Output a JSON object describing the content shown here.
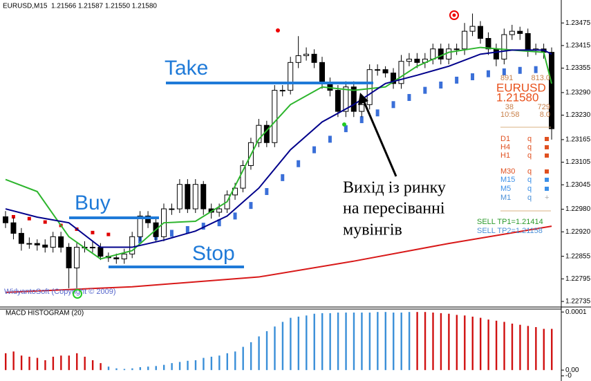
{
  "chart_data": [
    {
      "type": "candlestick",
      "title": "EURUSD,M15  1.21566 1.21587 1.21550 1.21580",
      "ylim": [
        1.22722,
        1.23536
      ],
      "yticks": [
        1.23475,
        1.23415,
        1.23355,
        {
          "value": 1.2329,
          "label": "1.23290"
        },
        {
          "value": 1.2323,
          "label": "1.23230"
        },
        1.23165,
        1.23105,
        1.23045,
        {
          "value": 1.2298,
          "label": "1.22980"
        },
        {
          "value": 1.2292,
          "label": "1.22920"
        },
        1.22855,
        1.22795,
        1.22735
      ],
      "bull_color": "#ffffff",
      "bear_color": "#000000",
      "open": [
        1.2296,
        1.22944,
        1.22916,
        1.22889,
        1.22889,
        1.22885,
        1.22879,
        1.22907,
        1.22879,
        1.22824,
        1.22879,
        1.22879,
        1.22879,
        1.22855,
        1.22851,
        1.22848,
        1.22861,
        1.22907,
        1.22962,
        1.22944,
        1.22907,
        1.22981,
        1.22981,
        1.23046,
        1.22981,
        1.23046,
        1.22981,
        1.22972,
        1.22981,
        1.23018,
        1.23036,
        1.23096,
        1.23157,
        1.23203,
        1.23157,
        1.23296,
        1.23296,
        1.2337,
        1.23388,
        1.23392,
        1.2337,
        1.23314,
        1.23296,
        1.2324,
        1.23305,
        1.2324,
        1.23258,
        1.23351,
        1.23351,
        1.23342,
        1.23314,
        1.23373,
        1.23379,
        1.2337,
        1.23379,
        1.23406,
        1.23379,
        1.23406,
        1.23406,
        1.23453,
        1.23466,
        1.23434,
        1.23406,
        1.23379,
        1.23444,
        1.23453,
        1.23447,
        1.23403,
        1.23406,
        1.23397
      ],
      "high": [
        1.22975,
        1.22958,
        1.2293,
        1.22905,
        1.229,
        1.229,
        1.2292,
        1.2292,
        1.2289,
        1.2289,
        1.22895,
        1.22895,
        1.2289,
        1.22865,
        1.22862,
        1.22875,
        1.2292,
        1.22975,
        1.22975,
        1.22955,
        1.22995,
        1.22995,
        1.2306,
        1.2306,
        1.2306,
        1.23055,
        1.22995,
        1.22995,
        1.2303,
        1.2305,
        1.2311,
        1.2317,
        1.2322,
        1.23215,
        1.2331,
        1.2331,
        1.23385,
        1.2344,
        1.2341,
        1.23405,
        1.23385,
        1.2333,
        1.2331,
        1.2332,
        1.2332,
        1.23275,
        1.23365,
        1.23365,
        1.2336,
        1.23355,
        1.2339,
        1.23395,
        1.23395,
        1.23395,
        1.2342,
        1.2342,
        1.2342,
        1.2342,
        1.23475,
        1.235,
        1.2348,
        1.2345,
        1.2342,
        1.2346,
        1.2347,
        1.23465,
        1.2346,
        1.2342,
        1.2342,
        1.2341
      ],
      "low": [
        1.2293,
        1.229,
        1.2287,
        1.22875,
        1.2287,
        1.22865,
        1.22865,
        1.22865,
        1.2277,
        1.2277,
        1.22865,
        1.22865,
        1.22845,
        1.2284,
        1.22835,
        1.22835,
        1.2285,
        1.22895,
        1.2293,
        1.22895,
        1.22895,
        1.22965,
        1.2297,
        1.2297,
        1.2297,
        1.22965,
        1.22955,
        1.2296,
        1.2297,
        1.23005,
        1.23025,
        1.23085,
        1.23145,
        1.23145,
        1.23145,
        1.2328,
        1.23285,
        1.23355,
        1.23375,
        1.23355,
        1.233,
        1.2328,
        1.23225,
        1.23225,
        1.23225,
        1.23225,
        1.23245,
        1.23335,
        1.2333,
        1.233,
        1.233,
        1.2336,
        1.23355,
        1.23355,
        1.23365,
        1.23365,
        1.23365,
        1.2339,
        1.2339,
        1.2344,
        1.2342,
        1.2339,
        1.2336,
        1.23365,
        1.2343,
        1.2343,
        1.23385,
        1.2339,
        1.2338,
        1.23165
      ],
      "close": [
        1.22944,
        1.22916,
        1.22889,
        1.22889,
        1.22885,
        1.22879,
        1.22907,
        1.22879,
        1.22824,
        1.22879,
        1.22879,
        1.22879,
        1.22855,
        1.22851,
        1.22848,
        1.22861,
        1.22907,
        1.22962,
        1.22944,
        1.22907,
        1.22981,
        1.22981,
        1.23046,
        1.22981,
        1.23046,
        1.22981,
        1.22972,
        1.22981,
        1.23018,
        1.23036,
        1.23096,
        1.23157,
        1.23203,
        1.23157,
        1.23296,
        1.23296,
        1.2337,
        1.23388,
        1.23392,
        1.2337,
        1.23314,
        1.23296,
        1.2324,
        1.23305,
        1.2324,
        1.23258,
        1.23351,
        1.23351,
        1.23342,
        1.23314,
        1.23373,
        1.23379,
        1.2337,
        1.23379,
        1.23406,
        1.23379,
        1.23406,
        1.23406,
        1.23453,
        1.23466,
        1.23434,
        1.23406,
        1.23379,
        1.23444,
        1.23453,
        1.23447,
        1.23403,
        1.23406,
        1.23397,
        1.23194
      ],
      "series": [
        {
          "style": "line",
          "color": "#d81818",
          "x": [
            0,
            16,
            32,
            44,
            56,
            69
          ],
          "values": [
            1.22759,
            1.22774,
            1.228,
            1.22842,
            1.22889,
            1.22935
          ]
        },
        {
          "style": "dots",
          "color": "#e00000",
          "x": [
            1,
            3,
            5,
            7,
            9,
            11,
            13
          ],
          "values": [
            1.2296,
            1.22955,
            1.22946,
            1.22937,
            1.22927,
            1.22918,
            1.22913
          ]
        },
        {
          "style": "dots",
          "color": "#3a6fd8",
          "x": [
            17,
            19,
            21,
            23,
            25,
            27,
            29,
            31,
            33,
            35,
            37,
            39,
            41,
            43,
            45,
            47,
            49,
            51,
            53,
            55,
            57,
            59,
            61,
            63,
            65,
            67,
            69
          ],
          "values": [
            1.22898,
            1.22907,
            1.22916,
            1.22926,
            1.22935,
            1.22944,
            1.22962,
            1.2299,
            1.23027,
            1.23064,
            1.23101,
            1.23138,
            1.23166,
            1.23194,
            1.23218,
            1.23236,
            1.23258,
            1.23277,
            1.23296,
            1.2331,
            1.23323,
            1.23332,
            1.2334,
            1.23345,
            1.23349,
            1.23351,
            1.23351
          ]
        },
        {
          "style": "line",
          "color": "#2db52d",
          "x": [
            0,
            4,
            8,
            12,
            16,
            20,
            24,
            28,
            32,
            36,
            40,
            44,
            48,
            52,
            56,
            60,
            64,
            68,
            69
          ],
          "values": [
            1.23059,
            1.23027,
            1.22907,
            1.22848,
            1.2287,
            1.22944,
            1.22948,
            1.23,
            1.23166,
            1.23258,
            1.23305,
            1.23296,
            1.23305,
            1.2336,
            1.23397,
            1.2341,
            1.23403,
            1.23397,
            1.23314
          ]
        },
        {
          "style": "line",
          "color": "#00008b",
          "x": [
            0,
            4,
            8,
            12,
            16,
            20,
            24,
            28,
            32,
            36,
            40,
            44,
            48,
            52,
            56,
            60,
            64,
            68,
            69
          ],
          "values": [
            1.22981,
            1.22959,
            1.22944,
            1.22879,
            1.22879,
            1.22898,
            1.22922,
            1.22962,
            1.23036,
            1.23138,
            1.23212,
            1.23258,
            1.23314,
            1.23336,
            1.2336,
            1.23392,
            1.23403,
            1.23403,
            1.23392
          ]
        }
      ]
    },
    {
      "type": "bar",
      "title": "MACD HISTOGRAM (20)",
      "ylim": [
        -1.88e-05,
        0.000105
      ],
      "yticks": [
        0.0001,
        {
          "value": 0,
          "label": "0.00"
        },
        {
          "value": -1e-05,
          "label": "-0"
        }
      ],
      "values": [
        2.9e-05,
        3.2e-05,
        2.5e-05,
        2.3e-05,
        2.1e-05,
        1.7e-05,
        2.3e-05,
        2.5e-05,
        2.5e-05,
        2.9e-05,
        2.3e-05,
        1.7e-05,
        1.2e-05,
        6e-06,
        3e-06,
        2e-06,
        3e-06,
        5e-06,
        6e-06,
        7e-06,
        9e-06,
        1.2e-05,
        1.4e-05,
        1.6e-05,
        1.7e-05,
        2.1e-05,
        2.3e-05,
        2.5e-05,
        2.9e-05,
        3.2e-05,
        4e-05,
        4.8e-05,
        5.8e-05,
        6.7e-05,
        7.5e-05,
        8.3e-05,
        9e-05,
        9.2e-05,
        9.4e-05,
        9.7e-05,
        9.8e-05,
        9.8e-05,
        9.9e-05,
        9.9e-05,
        9.9e-05,
        9.9e-05,
        9.9e-05,
        0.0001,
        0.0001,
        9.9e-05,
        9.9e-05,
        0.0001,
        0.0001,
        0.0001,
        9.9e-05,
        9.8e-05,
        9.7e-05,
        9.5e-05,
        9.4e-05,
        9.2e-05,
        9e-05,
        8.7e-05,
        8.5e-05,
        8.3e-05,
        8e-05,
        7.8e-05,
        7.6e-05,
        7.4e-05,
        7.1e-05,
        7.1e-05
      ],
      "colors": [
        "#d01010",
        "#d01010",
        "#d01010",
        "#d01010",
        "#d01010",
        "#d01010",
        "#d01010",
        "#d01010",
        "#d01010",
        "#d01010",
        "#d01010",
        "#d01010",
        "#d01010",
        "#3a8fd8",
        "#3a8fd8",
        "#3a8fd8",
        "#3a8fd8",
        "#3a8fd8",
        "#3a8fd8",
        "#3a8fd8",
        "#3a8fd8",
        "#3a8fd8",
        "#3a8fd8",
        "#3a8fd8",
        "#3a8fd8",
        "#3a8fd8",
        "#3a8fd8",
        "#3a8fd8",
        "#3a8fd8",
        "#3a8fd8",
        "#3a8fd8",
        "#3a8fd8",
        "#3a8fd8",
        "#3a8fd8",
        "#3a8fd8",
        "#3a8fd8",
        "#3a8fd8",
        "#3a8fd8",
        "#3a8fd8",
        "#3a8fd8",
        "#3a8fd8",
        "#3a8fd8",
        "#3a8fd8",
        "#3a8fd8",
        "#3a8fd8",
        "#3a8fd8",
        "#3a8fd8",
        "#3a8fd8",
        "#3a8fd8",
        "#3a8fd8",
        "#3a8fd8",
        "#3a8fd8",
        "#d01010",
        "#d01010",
        "#d01010",
        "#d01010",
        "#d01010",
        "#d01010",
        "#d01010",
        "#d01010",
        "#d01010",
        "#d01010",
        "#d01010",
        "#d01010",
        "#d01010",
        "#d01010",
        "#d01010",
        "#d01010",
        "#d01010",
        "#d01010"
      ]
    }
  ],
  "annotations": {
    "take": "Take",
    "buy": "Buy",
    "stop": "Stop",
    "exit": [
      "Вихід із ринку",
      "на пересіванні",
      "мувінгів"
    ],
    "watermark": "WidyantoSoft (Copyright © 2009)"
  },
  "panel": {
    "top": [
      "891",
      "813.0"
    ],
    "symbol": "EURUSD",
    "price": "1.21580",
    "row1": [
      "38",
      "729"
    ],
    "row2": [
      "10:58",
      "8.0"
    ],
    "timeframes": [
      {
        "name": "D1",
        "signal": "q",
        "color": "#e05020"
      },
      {
        "name": "H4",
        "signal": "q",
        "color": "#e05020"
      },
      {
        "name": "H1",
        "signal": "q",
        "color": "#e05020"
      },
      {
        "name": "M30",
        "signal": "q",
        "color": "#e05020"
      },
      {
        "name": "M15",
        "signal": "q",
        "color": "#3a8fe8"
      },
      {
        "name": "M5",
        "signal": "q",
        "color": "#3a8fe8"
      },
      {
        "name": "M1",
        "signal": "q",
        "mark": "+"
      }
    ],
    "targets": [
      "SELL TP1=1.21414",
      "SELL TP2=1.21158"
    ]
  }
}
